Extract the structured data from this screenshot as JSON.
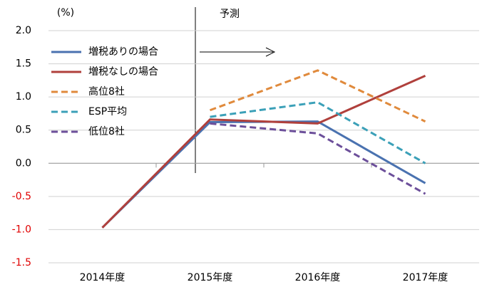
{
  "chart_data": {
    "type": "line",
    "y_label": "(%)",
    "annotation": "予測",
    "categories": [
      "2014年度",
      "2015年度",
      "2016年度",
      "2017年度"
    ],
    "series": [
      {
        "name": "増税ありの場合",
        "color": "#4a72b0",
        "dashed": false,
        "values": [
          -0.97,
          0.62,
          0.63,
          -0.3
        ]
      },
      {
        "name": "増税なしの場合",
        "color": "#b0403c",
        "dashed": false,
        "values": [
          -0.97,
          0.66,
          0.6,
          1.32
        ]
      },
      {
        "name": "高位8社",
        "color": "#e08a3c",
        "dashed": true,
        "values": [
          null,
          0.8,
          1.4,
          0.63
        ]
      },
      {
        "name": "ESP平均",
        "color": "#3ba0b8",
        "dashed": true,
        "values": [
          null,
          0.7,
          0.92,
          0.0
        ]
      },
      {
        "name": "低位8社",
        "color": "#6c4f9a",
        "dashed": true,
        "values": [
          null,
          0.6,
          0.45,
          -0.46
        ]
      }
    ],
    "ylim": [
      -1.5,
      2.0
    ],
    "yticks": [
      {
        "value": -1.5,
        "label": "-1.5"
      },
      {
        "value": -1.0,
        "label": "-1.0"
      },
      {
        "value": -0.5,
        "label": "-0.5"
      },
      {
        "value": 0,
        "label": "0.0"
      },
      {
        "value": 0.5,
        "label": "0.5"
      },
      {
        "value": 1.0,
        "label": "1.0"
      },
      {
        "value": 1.5,
        "label": "1.5"
      },
      {
        "value": 2.0,
        "label": "2.0"
      }
    ],
    "grid": true
  }
}
